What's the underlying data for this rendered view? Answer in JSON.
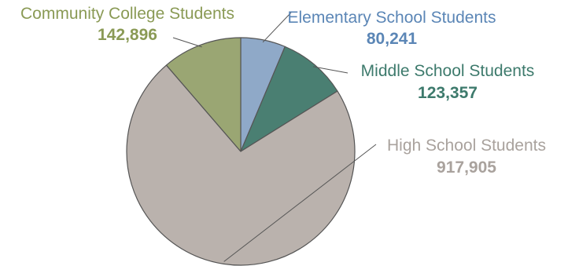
{
  "chart_data": {
    "type": "pie",
    "title": "",
    "slices": [
      {
        "label": "Elementary School Students",
        "value_label": "80,241",
        "value": 80241,
        "color": "#8fa9c8",
        "label_color": "#5b86b6"
      },
      {
        "label": "Middle School Students",
        "value_label": "123,357",
        "value": 123357,
        "color": "#4a7f72",
        "label_color": "#3d7a6c"
      },
      {
        "label": "High School Students",
        "value_label": "917,905",
        "value": 917905,
        "color": "#bab2ad",
        "label_color": "#a9a29d"
      },
      {
        "label": "Community College Students",
        "value_label": "142,896",
        "value": 142896,
        "color": "#9aa673",
        "label_color": "#8a9a55"
      }
    ],
    "start_angle_deg": 0,
    "direction": "clockwise",
    "edge_color": "#555555"
  }
}
